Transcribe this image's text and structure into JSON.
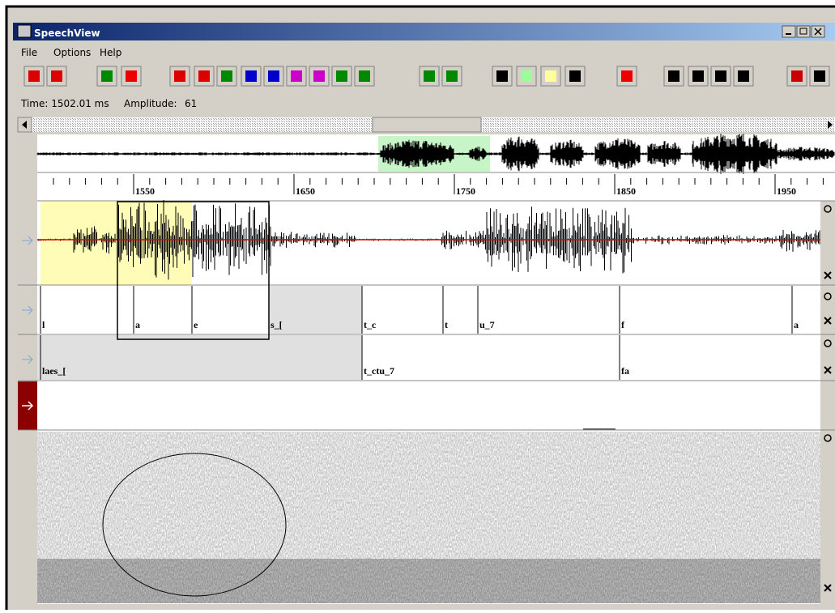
{
  "window": {
    "title": "SpeechView"
  },
  "menu": [
    "File",
    "Options",
    "Help"
  ],
  "status": {
    "time": "Time: 1502.01 ms",
    "amplitude_label": "Amplitude:",
    "amplitude": "61"
  },
  "ruler": {
    "labels": [
      1550,
      1650,
      1750,
      1850,
      1950
    ]
  },
  "tiers": [
    {
      "labels": [
        "l",
        "a",
        "e",
        "s_[",
        "t_c",
        "t",
        "u_7",
        "f",
        "a"
      ]
    },
    {
      "labels": [
        "laes_[",
        "t_ctu_7",
        "fa"
      ]
    }
  ]
}
